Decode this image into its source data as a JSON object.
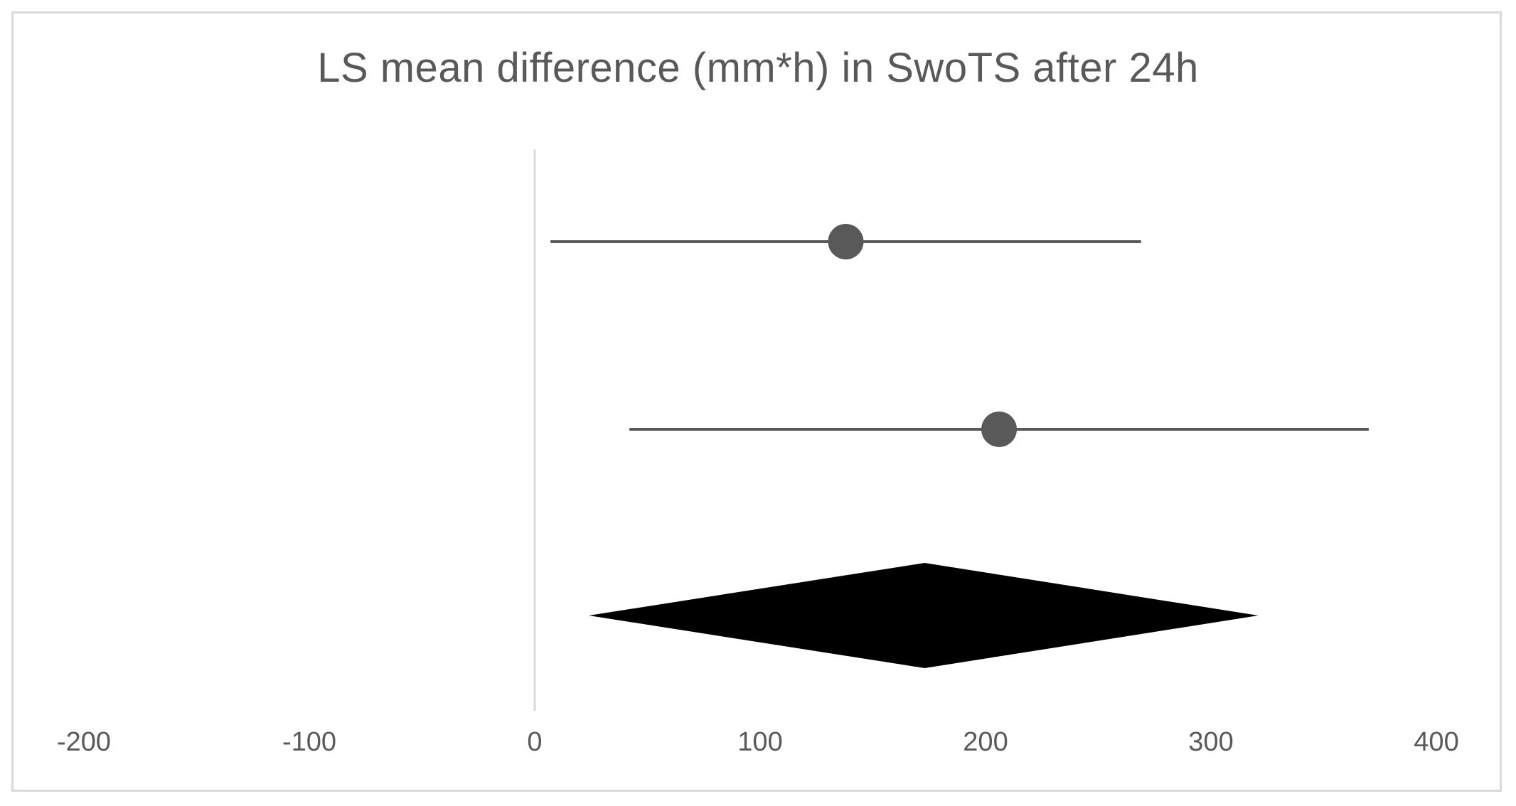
{
  "chart_data": {
    "type": "forest",
    "title": "LS mean difference (mm*h) in SwoTS after 24h",
    "xlabel": "",
    "ylabel": "",
    "xlim": [
      -200,
      400
    ],
    "x_ticks": [
      -200,
      -100,
      0,
      100,
      200,
      300,
      400
    ],
    "reference_line": 0,
    "grid": false,
    "studies": [
      {
        "estimate": 138,
        "ci_low": 7,
        "ci_high": 269
      },
      {
        "estimate": 206,
        "ci_low": 42,
        "ci_high": 370
      }
    ],
    "pooled": {
      "estimate": 173,
      "ci_low": 24,
      "ci_high": 321
    },
    "colors": {
      "marker": "#595959",
      "ci_line": "#595959",
      "pooled_diamond": "#000000",
      "reference_line": "#d9d9d9",
      "text": "#595959"
    }
  }
}
